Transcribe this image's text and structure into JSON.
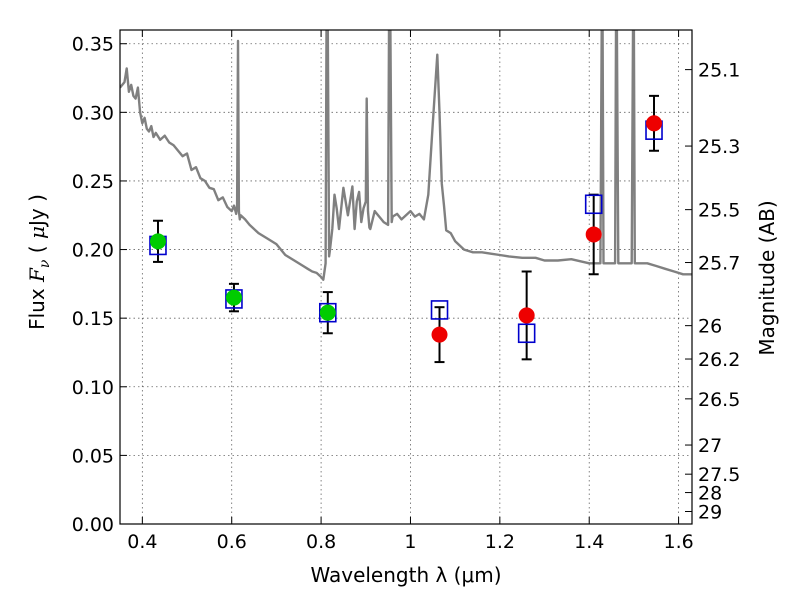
{
  "chart_data": {
    "type": "scatter",
    "xlabel": "Wavelength  λ (μm)",
    "ylabel": "Flux  F_ν  ( μJy )",
    "ylabel_parts": {
      "pre": "Flux  ",
      "var": "F",
      "sub": "ν",
      "mid": "  ( ",
      "mu": "μ",
      "post": "Jy )"
    },
    "y2label": "Magnitude (AB)",
    "xlim": [
      0.35,
      1.63
    ],
    "ylim": [
      0.0,
      0.36
    ],
    "grid": true,
    "x_ticks": [
      {
        "value": 0.4,
        "label": "0.4"
      },
      {
        "value": 0.6,
        "label": "0.6"
      },
      {
        "value": 0.8,
        "label": "0.8"
      },
      {
        "value": 1.0,
        "label": "1"
      },
      {
        "value": 1.2,
        "label": "1.2"
      },
      {
        "value": 1.4,
        "label": "1.4"
      },
      {
        "value": 1.6,
        "label": "1.6"
      }
    ],
    "y_ticks": [
      {
        "value": 0.0,
        "label": "0.00"
      },
      {
        "value": 0.05,
        "label": "0.05"
      },
      {
        "value": 0.1,
        "label": "0.10"
      },
      {
        "value": 0.15,
        "label": "0.15"
      },
      {
        "value": 0.2,
        "label": "0.20"
      },
      {
        "value": 0.25,
        "label": "0.25"
      },
      {
        "value": 0.3,
        "label": "0.30"
      },
      {
        "value": 0.35,
        "label": "0.35"
      }
    ],
    "y2_ticks": [
      {
        "mag": 25.1,
        "label": "25.1"
      },
      {
        "mag": 25.3,
        "label": "25.3"
      },
      {
        "mag": 25.5,
        "label": "25.5"
      },
      {
        "mag": 25.7,
        "label": "25.7"
      },
      {
        "mag": 26.0,
        "label": "26"
      },
      {
        "mag": 26.2,
        "label": "26.2"
      },
      {
        "mag": 26.5,
        "label": "26.5"
      },
      {
        "mag": 27.0,
        "label": "27"
      },
      {
        "mag": 27.5,
        "label": "27.5"
      },
      {
        "mag": 28.0,
        "label": "28"
      },
      {
        "mag": 29.0,
        "label": "29"
      }
    ],
    "series": [
      {
        "kind": "model_spectrum",
        "color": "#808080",
        "x": [
          0.35,
          0.36,
          0.365,
          0.37,
          0.375,
          0.38,
          0.385,
          0.39,
          0.395,
          0.4,
          0.405,
          0.41,
          0.415,
          0.42,
          0.425,
          0.43,
          0.44,
          0.45,
          0.46,
          0.47,
          0.48,
          0.49,
          0.5,
          0.51,
          0.52,
          0.53,
          0.54,
          0.55,
          0.56,
          0.57,
          0.58,
          0.59,
          0.6,
          0.605,
          0.61,
          0.612,
          0.614,
          0.616,
          0.618,
          0.62,
          0.63,
          0.64,
          0.66,
          0.68,
          0.7,
          0.72,
          0.74,
          0.76,
          0.77,
          0.78,
          0.79,
          0.8,
          0.805,
          0.81,
          0.812,
          0.815,
          0.818,
          0.82,
          0.825,
          0.83,
          0.835,
          0.84,
          0.85,
          0.86,
          0.87,
          0.875,
          0.88,
          0.885,
          0.89,
          0.895,
          0.9,
          0.902,
          0.905,
          0.908,
          0.91,
          0.92,
          0.93,
          0.94,
          0.95,
          0.952,
          0.955,
          0.958,
          0.96,
          0.97,
          0.98,
          0.99,
          1.0,
          1.01,
          1.02,
          1.03,
          1.04,
          1.05,
          1.06,
          1.065,
          1.07,
          1.075,
          1.08,
          1.09,
          1.1,
          1.12,
          1.14,
          1.16,
          1.18,
          1.2,
          1.22,
          1.25,
          1.28,
          1.3,
          1.33,
          1.36,
          1.4,
          1.42,
          1.425,
          1.428,
          1.43,
          1.432,
          1.435,
          1.44,
          1.45,
          1.455,
          1.458,
          1.46,
          1.462,
          1.465,
          1.47,
          1.48,
          1.49,
          1.495,
          1.498,
          1.5,
          1.502,
          1.505,
          1.51,
          1.53,
          1.55,
          1.57,
          1.59,
          1.61,
          1.63
        ],
        "y": [
          0.318,
          0.322,
          0.332,
          0.315,
          0.32,
          0.312,
          0.31,
          0.318,
          0.3,
          0.292,
          0.296,
          0.288,
          0.286,
          0.29,
          0.282,
          0.285,
          0.28,
          0.283,
          0.278,
          0.276,
          0.272,
          0.268,
          0.27,
          0.258,
          0.26,
          0.252,
          0.25,
          0.245,
          0.244,
          0.236,
          0.238,
          0.231,
          0.228,
          0.232,
          0.226,
          0.232,
          0.352,
          0.228,
          0.222,
          0.225,
          0.222,
          0.218,
          0.212,
          0.208,
          0.204,
          0.196,
          0.192,
          0.188,
          0.186,
          0.184,
          0.183,
          0.18,
          0.178,
          0.19,
          0.36,
          0.36,
          0.195,
          0.2,
          0.215,
          0.24,
          0.23,
          0.215,
          0.245,
          0.225,
          0.246,
          0.215,
          0.235,
          0.242,
          0.22,
          0.23,
          0.235,
          0.31,
          0.228,
          0.216,
          0.215,
          0.228,
          0.224,
          0.22,
          0.218,
          0.36,
          0.36,
          0.22,
          0.224,
          0.226,
          0.222,
          0.225,
          0.228,
          0.224,
          0.226,
          0.222,
          0.24,
          0.292,
          0.342,
          0.3,
          0.248,
          0.232,
          0.214,
          0.212,
          0.206,
          0.2,
          0.198,
          0.198,
          0.197,
          0.196,
          0.195,
          0.194,
          0.194,
          0.192,
          0.192,
          0.193,
          0.19,
          0.19,
          0.19,
          0.36,
          0.36,
          0.19,
          0.19,
          0.19,
          0.19,
          0.19,
          0.19,
          0.36,
          0.36,
          0.19,
          0.19,
          0.19,
          0.19,
          0.19,
          0.36,
          0.36,
          0.19,
          0.19,
          0.19,
          0.19,
          0.188,
          0.186,
          0.184,
          0.182,
          0.182
        ]
      },
      {
        "kind": "model_points",
        "marker": "open-square",
        "color": "#0000cc",
        "x": [
          0.435,
          0.605,
          0.815,
          1.065,
          1.26,
          1.41,
          1.545
        ],
        "y": [
          0.203,
          0.164,
          0.154,
          0.156,
          0.139,
          0.233,
          0.287
        ]
      },
      {
        "kind": "observed_points",
        "marker": "filled-circle",
        "color": "#00cc00",
        "x": [
          0.435,
          0.605,
          0.815
        ],
        "y": [
          0.206,
          0.165,
          0.154
        ],
        "yerr": [
          0.015,
          0.01,
          0.015
        ]
      },
      {
        "kind": "observed_points",
        "marker": "filled-circle",
        "color": "#ee0000",
        "x": [
          1.065,
          1.26,
          1.41,
          1.545
        ],
        "y": [
          0.138,
          0.152,
          0.211,
          0.292
        ],
        "yerr": [
          0.02,
          0.032,
          0.029,
          0.02
        ]
      }
    ]
  }
}
